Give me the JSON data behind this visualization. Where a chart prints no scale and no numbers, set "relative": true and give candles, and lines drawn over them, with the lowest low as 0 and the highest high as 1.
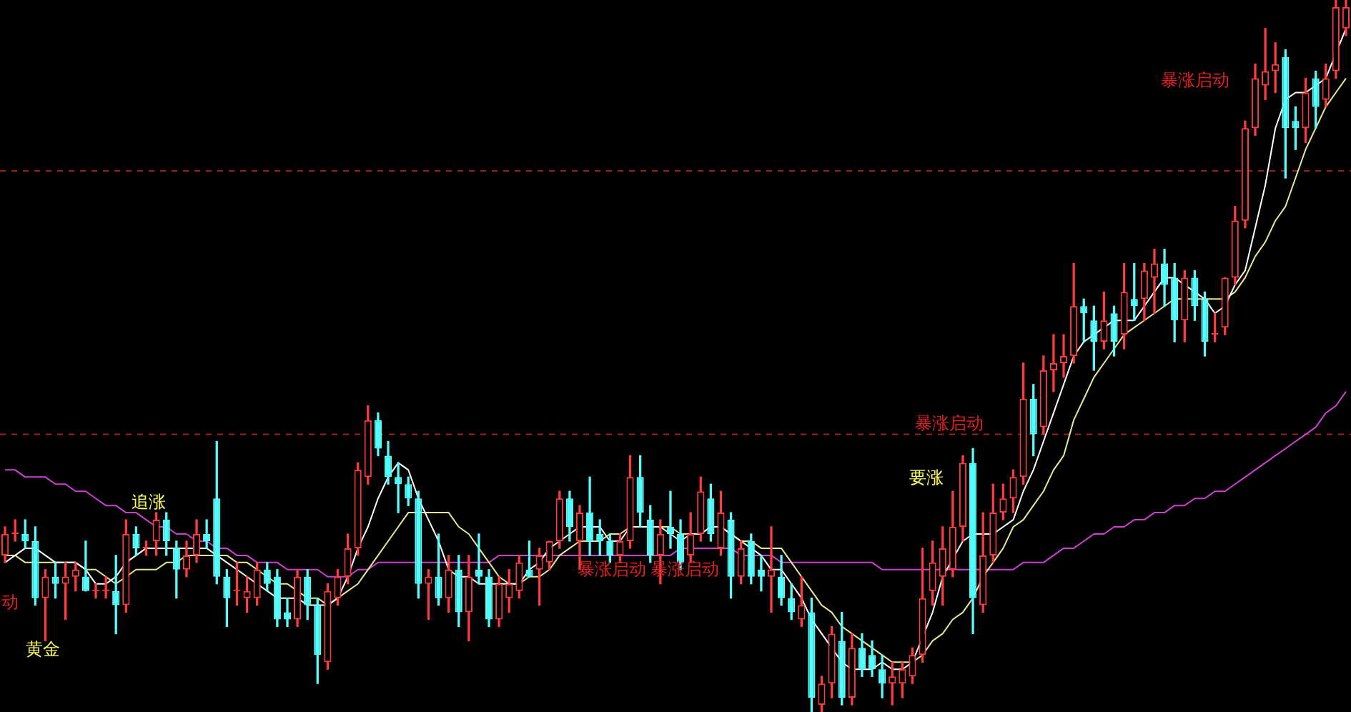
{
  "chart_data": {
    "type": "candlestick",
    "relative": true,
    "legend": false,
    "categories": [
      null,
      null,
      null,
      null,
      null,
      null,
      null,
      null,
      null,
      null,
      null,
      null,
      null,
      null,
      null,
      null,
      null,
      null,
      null,
      null,
      null,
      null,
      null,
      null,
      null,
      null,
      null,
      null,
      null,
      null,
      null,
      null,
      null,
      null,
      null,
      null,
      null,
      null,
      null,
      null,
      null,
      null,
      null,
      null,
      null,
      null,
      null,
      null,
      null,
      null,
      null,
      null,
      null,
      null,
      null,
      null,
      null,
      null,
      null,
      null,
      null,
      null,
      null,
      null,
      null,
      null,
      null,
      null,
      null,
      null,
      null,
      null,
      null,
      null,
      null,
      null,
      null,
      null,
      null,
      null,
      null,
      null,
      null,
      null,
      null,
      null,
      null,
      null,
      null,
      null,
      null,
      null,
      null,
      null,
      null,
      null,
      null,
      null,
      null,
      null,
      null,
      null,
      null,
      null,
      null,
      null,
      null,
      null,
      null,
      null,
      null,
      null,
      null,
      null,
      null,
      null,
      null,
      null,
      null,
      null,
      null,
      null,
      null,
      null,
      null,
      null,
      null,
      null,
      null,
      null,
      null,
      null,
      null,
      null
    ],
    "ohlc": [
      [
        0.22,
        0.26,
        0.21,
        0.25
      ],
      [
        0.25,
        0.27,
        0.24,
        0.25
      ],
      [
        0.25,
        0.27,
        0.23,
        0.24
      ],
      [
        0.24,
        0.26,
        0.15,
        0.16
      ],
      [
        0.16,
        0.2,
        0.1,
        0.19
      ],
      [
        0.19,
        0.21,
        0.16,
        0.18
      ],
      [
        0.18,
        0.21,
        0.13,
        0.19
      ],
      [
        0.19,
        0.21,
        0.17,
        0.2
      ],
      [
        0.19,
        0.24,
        0.17,
        0.17
      ],
      [
        0.17,
        0.18,
        0.16,
        0.17
      ],
      [
        0.17,
        0.19,
        0.16,
        0.17
      ],
      [
        0.17,
        0.22,
        0.11,
        0.15
      ],
      [
        0.15,
        0.27,
        0.14,
        0.25
      ],
      [
        0.25,
        0.26,
        0.22,
        0.23
      ],
      [
        0.23,
        0.24,
        0.22,
        0.23
      ],
      [
        0.24,
        0.28,
        0.22,
        0.27
      ],
      [
        0.27,
        0.28,
        0.22,
        0.24
      ],
      [
        0.23,
        0.24,
        0.16,
        0.2
      ],
      [
        0.2,
        0.24,
        0.19,
        0.22
      ],
      [
        0.22,
        0.27,
        0.21,
        0.25
      ],
      [
        0.25,
        0.27,
        0.23,
        0.24
      ],
      [
        0.3,
        0.38,
        0.18,
        0.19
      ],
      [
        0.19,
        0.2,
        0.12,
        0.16
      ],
      [
        0.17,
        0.21,
        0.15,
        0.17
      ],
      [
        0.16,
        0.19,
        0.14,
        0.17
      ],
      [
        0.16,
        0.21,
        0.15,
        0.2
      ],
      [
        0.2,
        0.21,
        0.17,
        0.18
      ],
      [
        0.19,
        0.2,
        0.12,
        0.13
      ],
      [
        0.14,
        0.16,
        0.12,
        0.13
      ],
      [
        0.13,
        0.2,
        0.12,
        0.19
      ],
      [
        0.19,
        0.2,
        0.13,
        0.15
      ],
      [
        0.15,
        0.16,
        0.04,
        0.08
      ],
      [
        0.07,
        0.18,
        0.06,
        0.17
      ],
      [
        0.16,
        0.2,
        0.15,
        0.19
      ],
      [
        0.19,
        0.25,
        0.18,
        0.23
      ],
      [
        0.23,
        0.35,
        0.22,
        0.34
      ],
      [
        0.33,
        0.43,
        0.32,
        0.41
      ],
      [
        0.41,
        0.42,
        0.36,
        0.37
      ],
      [
        0.36,
        0.38,
        0.32,
        0.33
      ],
      [
        0.33,
        0.35,
        0.28,
        0.32
      ],
      [
        0.32,
        0.33,
        0.29,
        0.3
      ],
      [
        0.3,
        0.31,
        0.16,
        0.18
      ],
      [
        0.18,
        0.2,
        0.13,
        0.19
      ],
      [
        0.19,
        0.25,
        0.15,
        0.16
      ],
      [
        0.16,
        0.22,
        0.14,
        0.2
      ],
      [
        0.2,
        0.22,
        0.12,
        0.14
      ],
      [
        0.14,
        0.22,
        0.1,
        0.19
      ],
      [
        0.2,
        0.25,
        0.18,
        0.19
      ],
      [
        0.19,
        0.2,
        0.12,
        0.13
      ],
      [
        0.13,
        0.19,
        0.12,
        0.18
      ],
      [
        0.16,
        0.2,
        0.14,
        0.18
      ],
      [
        0.17,
        0.22,
        0.16,
        0.21
      ],
      [
        0.2,
        0.24,
        0.19,
        0.19
      ],
      [
        0.2,
        0.23,
        0.15,
        0.22
      ],
      [
        0.21,
        0.24,
        0.2,
        0.24
      ],
      [
        0.24,
        0.31,
        0.23,
        0.3
      ],
      [
        0.3,
        0.31,
        0.24,
        0.26
      ],
      [
        0.24,
        0.29,
        0.2,
        0.28
      ],
      [
        0.28,
        0.33,
        0.22,
        0.24
      ],
      [
        0.25,
        0.27,
        0.22,
        0.24
      ],
      [
        0.24,
        0.25,
        0.21,
        0.22
      ],
      [
        0.22,
        0.25,
        0.21,
        0.24
      ],
      [
        0.24,
        0.36,
        0.23,
        0.33
      ],
      [
        0.33,
        0.36,
        0.26,
        0.28
      ],
      [
        0.27,
        0.29,
        0.21,
        0.22
      ],
      [
        0.22,
        0.27,
        0.18,
        0.25
      ],
      [
        0.26,
        0.31,
        0.23,
        0.25
      ],
      [
        0.25,
        0.27,
        0.2,
        0.21
      ],
      [
        0.22,
        0.28,
        0.21,
        0.25
      ],
      [
        0.25,
        0.33,
        0.24,
        0.31
      ],
      [
        0.3,
        0.32,
        0.24,
        0.25
      ],
      [
        0.23,
        0.31,
        0.22,
        0.28
      ],
      [
        0.27,
        0.28,
        0.16,
        0.19
      ],
      [
        0.19,
        0.24,
        0.18,
        0.23
      ],
      [
        0.24,
        0.25,
        0.18,
        0.19
      ],
      [
        0.2,
        0.22,
        0.17,
        0.19
      ],
      [
        0.19,
        0.26,
        0.14,
        0.2
      ],
      [
        0.19,
        0.22,
        0.15,
        0.16
      ],
      [
        0.16,
        0.18,
        0.13,
        0.14
      ],
      [
        0.13,
        0.19,
        0.12,
        0.15
      ],
      [
        0.14,
        0.16,
        0,
        0.02
      ],
      [
        0.01,
        0.05,
        0,
        0.04
      ],
      [
        0.04,
        0.12,
        0.02,
        0.11
      ],
      [
        0.1,
        0.14,
        0.01,
        0.02
      ],
      [
        0.02,
        0.11,
        0.01,
        0.09
      ],
      [
        0.09,
        0.11,
        0.05,
        0.06
      ],
      [
        0.08,
        0.1,
        0.05,
        0.06
      ],
      [
        0.06,
        0.08,
        0.02,
        0.04
      ],
      [
        0.04,
        0.07,
        0.01,
        0.05
      ],
      [
        0.04,
        0.07,
        0.02,
        0.06
      ],
      [
        0.05,
        0.09,
        0.04,
        0.08
      ],
      [
        0.08,
        0.23,
        0.07,
        0.16
      ],
      [
        0.17,
        0.24,
        0.15,
        0.21
      ],
      [
        0.19,
        0.26,
        0.15,
        0.23
      ],
      [
        0.2,
        0.31,
        0.19,
        0.26
      ],
      [
        0.26,
        0.36,
        0.24,
        0.35
      ],
      [
        0.35,
        0.37,
        0.11,
        0.16
      ],
      [
        0.15,
        0.28,
        0.14,
        0.22
      ],
      [
        0.22,
        0.32,
        0.21,
        0.28
      ],
      [
        0.28,
        0.32,
        0.27,
        0.3
      ],
      [
        0.3,
        0.34,
        0.28,
        0.33
      ],
      [
        0.33,
        0.49,
        0.32,
        0.44
      ],
      [
        0.44,
        0.46,
        0.36,
        0.39
      ],
      [
        0.4,
        0.5,
        0.39,
        0.48
      ],
      [
        0.48,
        0.53,
        0.45,
        0.49
      ],
      [
        0.49,
        0.53,
        0.47,
        0.5
      ],
      [
        0.5,
        0.63,
        0.49,
        0.57
      ],
      [
        0.57,
        0.58,
        0.52,
        0.56
      ],
      [
        0.55,
        0.57,
        0.48,
        0.52
      ],
      [
        0.52,
        0.59,
        0.51,
        0.55
      ],
      [
        0.56,
        0.57,
        0.5,
        0.52
      ],
      [
        0.53,
        0.63,
        0.51,
        0.59
      ],
      [
        0.58,
        0.63,
        0.55,
        0.57
      ],
      [
        0.58,
        0.63,
        0.55,
        0.62
      ],
      [
        0.61,
        0.65,
        0.56,
        0.63
      ],
      [
        0.63,
        0.65,
        0.57,
        0.6
      ],
      [
        0.61,
        0.63,
        0.52,
        0.55
      ],
      [
        0.55,
        0.62,
        0.52,
        0.61
      ],
      [
        0.61,
        0.62,
        0.55,
        0.57
      ],
      [
        0.58,
        0.59,
        0.5,
        0.52
      ],
      [
        0.53,
        0.56,
        0.52,
        0.53
      ],
      [
        0.54,
        0.61,
        0.53,
        0.61
      ],
      [
        0.61,
        0.71,
        0.6,
        0.69
      ],
      [
        0.69,
        0.83,
        0.68,
        0.82
      ],
      [
        0.82,
        0.91,
        0.81,
        0.89
      ],
      [
        0.88,
        0.96,
        0.86,
        0.9
      ],
      [
        0.9,
        0.94,
        0.87,
        0.91
      ],
      [
        0.92,
        0.93,
        0.75,
        0.82
      ],
      [
        0.83,
        0.85,
        0.79,
        0.82
      ],
      [
        0.82,
        0.89,
        0.8,
        0.87
      ],
      [
        0.89,
        0.9,
        0.82,
        0.85
      ],
      [
        0.86,
        0.91,
        0.85,
        0.89
      ],
      [
        0.9,
        1,
        0.89,
        0.99
      ],
      [
        0.96,
        1,
        0.95,
        0.99
      ]
    ],
    "series": [
      {
        "type": "line",
        "color": "#ffffff",
        "values": [
          0.21,
          0.22,
          0.23,
          0.23,
          0.22,
          0.21,
          0.21,
          0.21,
          0.2,
          0.18,
          0.18,
          0.19,
          0.21,
          0.22,
          0.23,
          0.23,
          0.23,
          0.23,
          0.23,
          0.23,
          0.23,
          0.22,
          0.21,
          0.2,
          0.19,
          0.18,
          0.17,
          0.16,
          0.16,
          0.16,
          0.15,
          0.15,
          0.15,
          0.16,
          0.19,
          0.23,
          0.26,
          0.3,
          0.33,
          0.35,
          0.34,
          0.3,
          0.27,
          0.24,
          0.2,
          0.19,
          0.19,
          0.18,
          0.18,
          0.18,
          0.18,
          0.18,
          0.2,
          0.21,
          0.23,
          0.24,
          0.25,
          0.26,
          0.26,
          0.26,
          0.24,
          0.24,
          0.26,
          0.26,
          0.26,
          0.26,
          0.25,
          0.24,
          0.25,
          0.25,
          0.26,
          0.26,
          0.25,
          0.24,
          0.23,
          0.22,
          0.2,
          0.2,
          0.18,
          0.16,
          0.13,
          0.11,
          0.09,
          0.07,
          0.06,
          0.06,
          0.06,
          0.07,
          0.06,
          0.06,
          0.07,
          null,
          0.14,
          0.19,
          null,
          0.24,
          0.25,
          0.25,
          0.25,
          0.26,
          0.27,
          0.31,
          0.34,
          0.38,
          0.42,
          0.46,
          0.5,
          0.52,
          0.53,
          0.54,
          0.55,
          0.55,
          0.55,
          0.57,
          0.59,
          0.61,
          0.61,
          0.6,
          0.59,
          0.58,
          0.56,
          0.57,
          0.6,
          0.62,
          0.68,
          0.74,
          0.82,
          0.86,
          0.87,
          0.87,
          0.88,
          0.89,
          null,
          0.96
        ]
      },
      {
        "type": "line",
        "color": "#e8e890",
        "values": [
          0.22,
          0.22,
          0.21,
          0.21,
          0.21,
          0.21,
          0.21,
          0.21,
          0.2,
          0.2,
          0.19,
          0.18,
          0.19,
          0.2,
          0.2,
          0.2,
          0.21,
          0.21,
          0.22,
          0.22,
          0.22,
          0.22,
          0.22,
          0.21,
          0.21,
          0.2,
          0.19,
          0.18,
          0.18,
          0.17,
          0.16,
          0.16,
          0.15,
          0.16,
          0.17,
          0.18,
          0.2,
          0.22,
          0.24,
          0.26,
          0.28,
          0.28,
          0.28,
          0.28,
          0.28,
          0.26,
          0.25,
          0.23,
          0.21,
          0.19,
          0.18,
          0.18,
          0.19,
          0.19,
          0.2,
          0.22,
          0.23,
          0.24,
          0.24,
          0.24,
          0.25,
          0.25,
          0.26,
          null,
          null,
          0.26,
          0.26,
          0.25,
          0.25,
          0.25,
          0.26,
          0.26,
          0.25,
          0.24,
          0.24,
          0.23,
          0.23,
          0.23,
          0.21,
          0.19,
          0.17,
          0.15,
          0.14,
          0.12,
          0.11,
          0.1,
          0.09,
          0.08,
          0.07,
          0.07,
          0.07,
          0.08,
          0.1,
          0.11,
          0.13,
          0.14,
          0.16,
          0.19,
          0.21,
          0.23,
          0.26,
          0.27,
          0.29,
          0.31,
          0.34,
          0.36,
          0.41,
          0.44,
          0.47,
          0.49,
          0.51,
          0.53,
          0.54,
          0.55,
          0.56,
          0.57,
          0.58,
          0.58,
          0.58,
          0.58,
          0.58,
          0.58,
          0.59,
          0.61,
          0.64,
          0.66,
          0.69,
          0.71,
          0.75,
          0.79,
          0.82,
          0.85,
          0.87,
          0.89
        ]
      },
      {
        "type": "line",
        "color": "#d040d0",
        "values": [
          0.34,
          0.34,
          0.33,
          0.33,
          0.33,
          0.32,
          0.32,
          0.31,
          0.31,
          0.3,
          0.29,
          0.29,
          0.28,
          0.28,
          0.27,
          0.26,
          0.26,
          0.25,
          0.25,
          0.24,
          0.24,
          0.23,
          0.23,
          0.22,
          0.22,
          0.21,
          0.21,
          0.21,
          0.2,
          0.2,
          0.2,
          0.2,
          0.19,
          0.19,
          0.19,
          0.2,
          0.2,
          0.21,
          0.21,
          0.21,
          0.21,
          0.21,
          0.21,
          0.21,
          0.21,
          0.21,
          0.21,
          0.21,
          0.21,
          0.22,
          0.22,
          0.22,
          0.22,
          0.22,
          0.22,
          0.22,
          0.22,
          0.22,
          0.22,
          0.22,
          0.22,
          0.22,
          0.22,
          0.22,
          0.22,
          0.22,
          0.22,
          0.23,
          0.23,
          0.23,
          0.23,
          0.23,
          0.23,
          0.22,
          0.22,
          0.22,
          0.22,
          0.21,
          0.21,
          0.21,
          0.21,
          0.21,
          0.21,
          0.21,
          0.21,
          0.21,
          0.21,
          0.2,
          0.2,
          0.2,
          0.2,
          0.2,
          0.2,
          0.2,
          0.2,
          0.2,
          0.2,
          0.2,
          0.2,
          0.2,
          0.2,
          0.21,
          0.21,
          0.21,
          0.22,
          0.23,
          0.23,
          0.24,
          0.25,
          0.25,
          0.26,
          0.26,
          0.27,
          0.27,
          0.28,
          0.28,
          0.29,
          0.29,
          0.3,
          0.3,
          0.31,
          0.31,
          0.32,
          0.33,
          0.34,
          0.35,
          0.36,
          0.37,
          0.38,
          0.39,
          0.4,
          0.42,
          0.43,
          0.45
        ]
      }
    ],
    "ref_lines": [
      {
        "axis": "y",
        "value": 0.76,
        "color": "#a02020",
        "line_style": "dashed"
      },
      {
        "axis": "y",
        "value": 0.39,
        "color": "#a02020",
        "line_style": "dashed"
      }
    ],
    "annotations": [
      "动",
      "黄金",
      "追涨",
      "暴涨启动",
      "暴涨启动",
      "要涨",
      "暴涨启动",
      "暴涨启动"
    ]
  }
}
